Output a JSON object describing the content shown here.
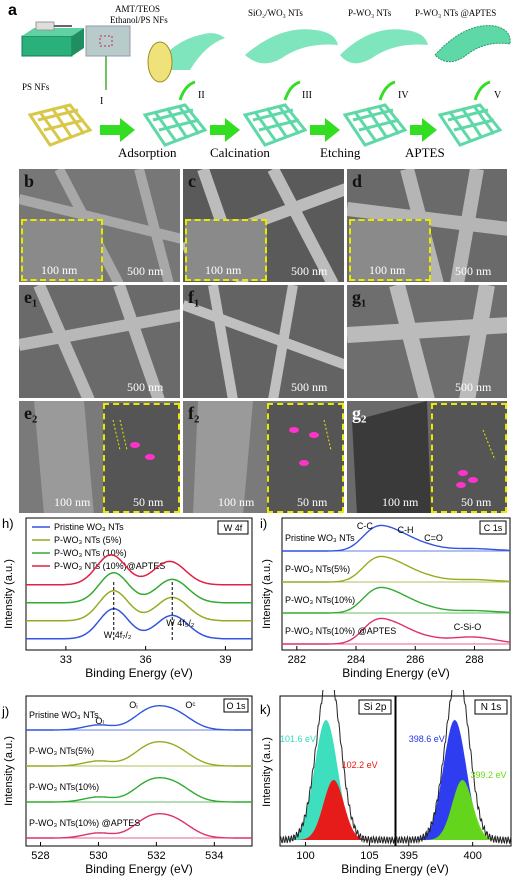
{
  "panel_a": {
    "letter": "a",
    "top_labels": [
      "AMT/TEOS",
      "Ethanol/PS NFs",
      "SiO₂/WO₃ NTs",
      "P-WO₃ NTs",
      "P-WO₃ NTs @APTES"
    ],
    "ps_nfs": "PS NFs",
    "steps": [
      "Adsorption",
      "Calcination",
      "Etching",
      "APTES"
    ],
    "roman": [
      "I",
      "II",
      "III",
      "IV",
      "V"
    ]
  },
  "sem_panels": [
    {
      "letter": "b",
      "scale_main": "500 nm",
      "scale_inset": "100 nm"
    },
    {
      "letter": "c",
      "scale_main": "500 nm",
      "scale_inset": "100 nm"
    },
    {
      "letter": "d",
      "scale_main": "500 nm",
      "scale_inset": "100 nm"
    },
    {
      "letter": "e₁",
      "scale_main": "500 nm"
    },
    {
      "letter": "f₁",
      "scale_main": "500 nm"
    },
    {
      "letter": "g₁",
      "scale_main": "500 nm"
    },
    {
      "letter": "e₂",
      "scale_main": "100 nm",
      "scale_inset": "50 nm"
    },
    {
      "letter": "f₂",
      "scale_main": "100 nm",
      "scale_inset": "50 nm"
    },
    {
      "letter": "g₂",
      "scale_main": "100 nm",
      "scale_inset": "50 nm"
    }
  ],
  "chart_data": [
    {
      "panel": "h)",
      "type": "line",
      "tag": "W 4f",
      "xlabel": "Binding Energy (eV)",
      "ylabel": "Intensity (a.u.)",
      "xlim": [
        31.5,
        40.0
      ],
      "x_ticks": [
        33,
        36,
        39
      ],
      "legend_placement": "top-left",
      "series": [
        {
          "name": "Pristine WO₃ NTs",
          "color": "#3355dd",
          "offset": 0
        },
        {
          "name": "P-WO₃ NTs (5%)",
          "color": "#99aa22",
          "offset": 1
        },
        {
          "name": "P-WO₃ NTs (10%)",
          "color": "#33aa33",
          "offset": 2
        },
        {
          "name": "P-WO₃ NTs (10%)@APTES",
          "color": "#dd2244",
          "offset": 3
        }
      ],
      "peaks": [
        34.8,
        37.0
      ],
      "annotations": [
        "W 4f₇/₂",
        "W 4f₅/₂"
      ]
    },
    {
      "panel": "i)",
      "type": "line",
      "tag": "C 1s",
      "xlabel": "Binding Energy (eV)",
      "ylabel": "Intensity (a.u.)",
      "xlim": [
        281.5,
        289.2
      ],
      "x_ticks": [
        282,
        284,
        286,
        288
      ],
      "series": [
        {
          "name": "Pristine WO₃ NTs",
          "color": "#3355dd",
          "offset": 3
        },
        {
          "name": "P-WO₃ NTs(5%)",
          "color": "#99aa22",
          "offset": 2
        },
        {
          "name": "P-WO₃ NTs(10%)",
          "color": "#33aa33",
          "offset": 1
        },
        {
          "name": "P-WO₃ NTs(10%) @APTES",
          "color": "#dd3366",
          "offset": 0
        }
      ],
      "peaks": [
        284.6,
        285.2,
        286.0,
        288.0
      ],
      "annotations": [
        "C-C",
        "C-H",
        "C=O",
        "C-Si-O"
      ]
    },
    {
      "panel": "j)",
      "type": "line",
      "tag": "O 1s",
      "xlabel": "Binding Energy (eV)",
      "ylabel": "Intensity (a.u.)",
      "xlim": [
        527.5,
        535.3
      ],
      "x_ticks": [
        528,
        530,
        532,
        534
      ],
      "series": [
        {
          "name": "Pristine WO₃ NTs",
          "color": "#3355dd",
          "offset": 3
        },
        {
          "name": "P-WO₃ NTs(5%)",
          "color": "#99aa22",
          "offset": 2
        },
        {
          "name": "P-WO₃ NTs(10%)",
          "color": "#33aa33",
          "offset": 1
        },
        {
          "name": "P-WO₃ NTs(10%) @APTES",
          "color": "#dd3366",
          "offset": 0
        }
      ],
      "peaks": [
        530.0,
        531.7,
        532.5
      ],
      "annotations": [
        "Oₗ",
        "Oᵢ",
        "Oᶜ"
      ]
    },
    {
      "panel": "k)",
      "type": "area",
      "tags": [
        "Si 2p",
        "N 1s"
      ],
      "xlabel": "Binding Energy (eV)",
      "ylabel": "Intensity (a.u.)",
      "subplots": [
        {
          "xlim": [
            98,
            107
          ],
          "x_ticks": [
            100,
            105
          ],
          "peaks": [
            {
              "x": 101.6,
              "label": "101.6 eV",
              "color": "#33ddbb"
            },
            {
              "x": 102.2,
              "label": "102.2 eV",
              "color": "#ee1111"
            }
          ]
        },
        {
          "xlim": [
            394,
            403
          ],
          "x_ticks": [
            395,
            400
          ],
          "peaks": [
            {
              "x": 398.6,
              "label": "398.6 eV",
              "color": "#2233ee"
            },
            {
              "x": 399.2,
              "label": "399.2 eV",
              "color": "#66dd11"
            }
          ]
        }
      ]
    }
  ]
}
